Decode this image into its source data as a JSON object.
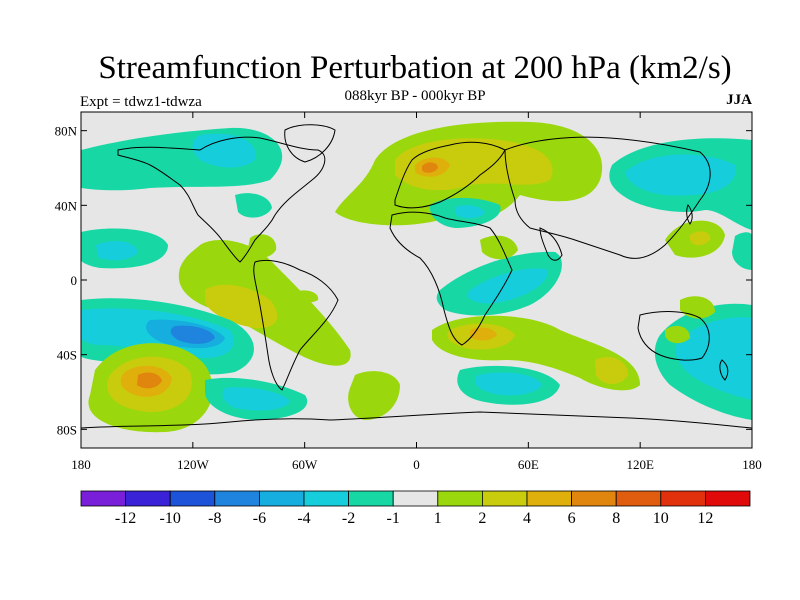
{
  "header": {
    "title": "Streamfunction Perturbation at 200 hPa (km2/s)",
    "subtitle": "088kyr BP - 000kyr BP",
    "expt": "Expt = tdwz1-tdwza",
    "season": "JJA"
  },
  "axes": {
    "lat_labels": [
      "80N",
      "40N",
      "0",
      "40S",
      "80S"
    ],
    "lat_values": [
      80,
      40,
      0,
      -40,
      -80
    ],
    "lon_labels": [
      "180",
      "120W",
      "60W",
      "0",
      "60E",
      "120E",
      "180"
    ],
    "lon_values": [
      -180,
      -120,
      -60,
      0,
      60,
      120,
      180
    ],
    "lat_range": [
      -90,
      90
    ],
    "lon_range": [
      -180,
      180
    ]
  },
  "colorbar": {
    "labels": [
      "-12",
      "-10",
      "-8",
      "-6",
      "-4",
      "-2",
      "-1",
      "1",
      "2",
      "4",
      "6",
      "8",
      "10",
      "12"
    ],
    "colors": [
      "#7a1fd9",
      "#3a22d8",
      "#1c53d8",
      "#1f84dd",
      "#15aede",
      "#16cddc",
      "#17d8a5",
      "#e6e6e6",
      "#9ad80d",
      "#c9cc0d",
      "#dfaf0c",
      "#e0850d",
      "#e05c0e",
      "#e0300c",
      "#e00a0a"
    ]
  },
  "colors": {
    "background": "#e6e6e6",
    "coast": "#000000"
  }
}
